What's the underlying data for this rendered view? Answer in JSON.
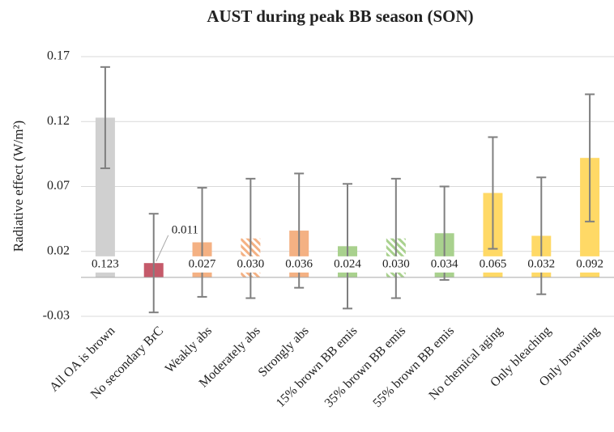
{
  "chart_data": {
    "type": "bar",
    "title": "AUST during peak BB season (SON)",
    "y_label": "Radiative effect (W/m²)",
    "categories": [
      "All OA is brown",
      "No secondary BrC",
      "Weakly abs",
      "Moderately abs",
      "Strongly abs",
      "15% brown BB emis",
      "35% brown BB emis",
      "55% brown BB emis",
      "No chemical aging",
      "Only bleaching",
      "Only browning"
    ],
    "values": [
      0.123,
      0.011,
      0.027,
      0.03,
      0.036,
      0.024,
      0.03,
      0.034,
      0.065,
      0.032,
      0.092
    ],
    "value_labels": [
      "0.123",
      "0.011",
      "0.027",
      "0.030",
      "0.036",
      "0.024",
      "0.030",
      "0.034",
      "0.065",
      "0.032",
      "0.092"
    ],
    "errors": [
      0.039,
      0.038,
      0.042,
      0.046,
      0.044,
      0.048,
      0.046,
      0.036,
      0.043,
      0.045,
      0.049
    ],
    "colors": [
      "#d0d0d0",
      "#c55a6a",
      "#f4b183",
      "#f4b183",
      "#f4b183",
      "#a9d18e",
      "#a9d18e",
      "#a9d18e",
      "#ffd966",
      "#ffd966",
      "#ffd966"
    ],
    "hatched": [
      false,
      false,
      false,
      true,
      false,
      false,
      true,
      false,
      false,
      false,
      false
    ],
    "ylim": [
      -0.03,
      0.17
    ],
    "yticks": [
      -0.03,
      0.02,
      0.07,
      0.12,
      0.17
    ],
    "grid": true
  }
}
